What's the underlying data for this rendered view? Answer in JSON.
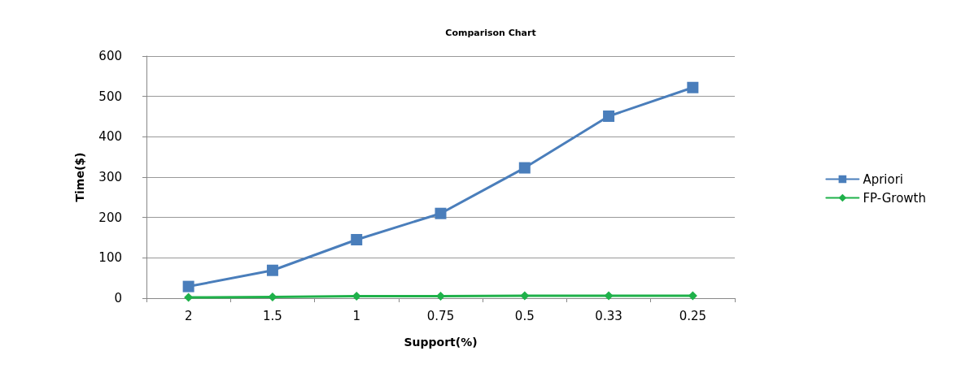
{
  "chart_data": {
    "type": "line",
    "title": "Comparison Chart",
    "xlabel": "Support(%)",
    "ylabel": "Time($)",
    "categories": [
      "2",
      "1.5",
      "1",
      "0.75",
      "0.5",
      "0.33",
      "0.25"
    ],
    "series": [
      {
        "name": "Apriori",
        "color": "#4a7ebb",
        "marker": "square",
        "values": [
          29,
          69,
          145,
          210,
          323,
          451,
          522
        ]
      },
      {
        "name": "FP-Growth",
        "color": "#1fb14a",
        "marker": "diamond",
        "values": [
          2,
          3,
          5,
          5,
          6,
          6,
          6
        ]
      }
    ],
    "ylim": [
      0,
      600
    ],
    "yticks": [
      0,
      100,
      200,
      300,
      400,
      500,
      600
    ],
    "grid": "y",
    "legend": "right",
    "line_style": "solid"
  }
}
